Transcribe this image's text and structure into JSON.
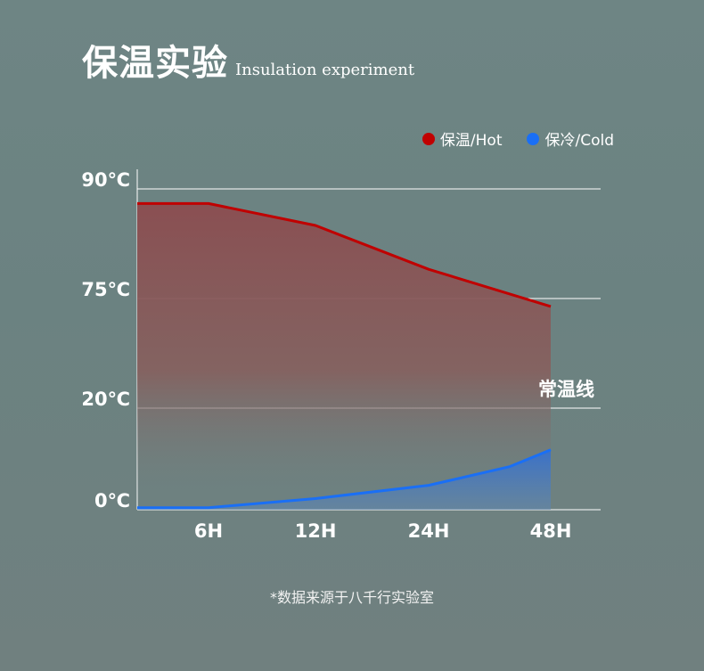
{
  "header": {
    "title": "保温实验",
    "subtitle": "Insulation experiment"
  },
  "legend": [
    {
      "label": "保温/Hot",
      "color": "#c00000"
    },
    {
      "label": "保冷/Cold",
      "color": "#1a6ff5"
    }
  ],
  "baseline_label": "常温线",
  "footnote": "*数据来源于八千行实验室",
  "chart_data": {
    "type": "area",
    "x": [
      "0H",
      "6H",
      "12H",
      "24H",
      "48H"
    ],
    "xtick_labels": [
      "6H",
      "12H",
      "24H",
      "48H"
    ],
    "ytick_labels": [
      "90℃",
      "75℃",
      "20℃",
      "0℃"
    ],
    "ytick_values": [
      90,
      75,
      20,
      0
    ],
    "series": [
      {
        "name": "保温/Hot",
        "color": "#c00000",
        "points": [
          [
            0,
            88
          ],
          [
            6,
            88
          ],
          [
            12,
            85
          ],
          [
            24,
            79
          ],
          [
            48,
            71
          ]
        ]
      },
      {
        "name": "保冷/Cold",
        "color": "#1a6ff5",
        "points": [
          [
            0,
            0.4
          ],
          [
            6,
            0.4
          ],
          [
            12,
            2.2
          ],
          [
            24,
            4.8
          ],
          [
            40,
            8.5
          ],
          [
            48,
            11.8
          ]
        ]
      }
    ],
    "grid": true
  }
}
